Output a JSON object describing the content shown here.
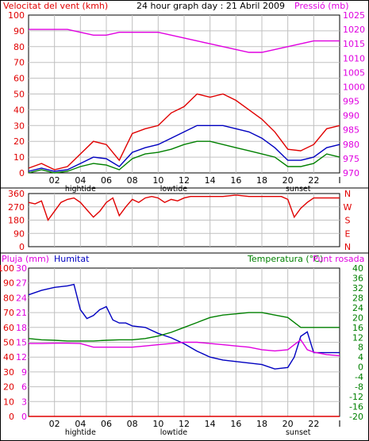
{
  "chart_data": [
    {
      "type": "line",
      "title": "24 hour graph day : 21 Abril 2009",
      "left_label": "Velocitat del vent (kmh)",
      "right_label": "Pressió (mb)",
      "y_left": {
        "min": 0,
        "max": 100,
        "ticks": [
          "0",
          "10",
          "20",
          "30",
          "40",
          "50",
          "60",
          "70",
          "80",
          "90",
          "100"
        ]
      },
      "y_right": {
        "min": 970,
        "max": 1025,
        "ticks": [
          "970",
          "975",
          "980",
          "985",
          "990",
          "995",
          "1000",
          "1005",
          "1010",
          "1015",
          "1020",
          "1025"
        ]
      },
      "x": {
        "min": 0,
        "max": 24,
        "ticks": [
          "02",
          "04",
          "06",
          "08",
          "10",
          "12",
          "14",
          "16",
          "18",
          "20",
          "22"
        ],
        "end_tick": "I"
      },
      "annotations": {
        "hightide": "hightide",
        "lowtide": "lowtide",
        "sunset": "sunset"
      },
      "series": [
        {
          "axis": "right",
          "color": "#e000e0",
          "x": [
            0,
            1,
            2,
            3,
            4,
            5,
            6,
            7,
            8,
            9,
            10,
            11,
            12,
            13,
            14,
            15,
            16,
            17,
            18,
            19,
            20,
            21,
            22,
            23,
            24
          ],
          "values": [
            1020,
            1020,
            1020,
            1020,
            1019,
            1018,
            1018,
            1019,
            1019,
            1019,
            1019,
            1018,
            1017,
            1016,
            1015,
            1014,
            1013,
            1012,
            1012,
            1013,
            1014,
            1015,
            1016,
            1016,
            1016
          ]
        },
        {
          "axis": "left",
          "color": "#e00000",
          "x": [
            0,
            1,
            2,
            3,
            4,
            5,
            6,
            7,
            8,
            9,
            10,
            11,
            12,
            13,
            14,
            15,
            16,
            17,
            18,
            19,
            20,
            21,
            22,
            23,
            24
          ],
          "values": [
            3,
            6,
            2,
            4,
            12,
            20,
            18,
            8,
            25,
            28,
            30,
            38,
            42,
            50,
            48,
            50,
            46,
            40,
            34,
            26,
            15,
            14,
            18,
            28,
            30
          ]
        },
        {
          "axis": "left",
          "color": "#0000c0",
          "x": [
            0,
            1,
            2,
            3,
            4,
            5,
            6,
            7,
            8,
            9,
            10,
            11,
            12,
            13,
            14,
            15,
            16,
            17,
            18,
            19,
            20,
            21,
            22,
            23,
            24
          ],
          "values": [
            1,
            3,
            1,
            2,
            6,
            10,
            9,
            4,
            13,
            16,
            18,
            22,
            26,
            30,
            30,
            30,
            28,
            26,
            22,
            16,
            8,
            8,
            10,
            16,
            18
          ]
        },
        {
          "axis": "left",
          "color": "#008000",
          "x": [
            0,
            1,
            2,
            3,
            4,
            5,
            6,
            7,
            8,
            9,
            10,
            11,
            12,
            13,
            14,
            15,
            16,
            17,
            18,
            19,
            20,
            21,
            22,
            23,
            24
          ],
          "values": [
            0,
            2,
            0,
            1,
            4,
            6,
            5,
            2,
            9,
            12,
            13,
            15,
            18,
            20,
            20,
            18,
            16,
            14,
            12,
            10,
            4,
            4,
            6,
            12,
            10
          ]
        }
      ]
    },
    {
      "type": "line",
      "y_left": {
        "min": 0,
        "max": 360,
        "ticks": [
          "0",
          "90",
          "180",
          "270",
          "360"
        ]
      },
      "right_letters": [
        "N",
        "W",
        "S",
        "E",
        "N"
      ],
      "series": [
        {
          "color": "#e00000",
          "x": [
            0,
            0.5,
            1,
            1.5,
            2,
            2.5,
            3,
            3.5,
            4,
            4.5,
            5,
            5.5,
            6,
            6.5,
            7,
            7.5,
            8,
            8.5,
            9,
            9.5,
            10,
            10.5,
            11,
            11.5,
            12,
            12.5,
            13,
            14,
            15,
            16,
            17,
            18,
            19,
            19.5,
            20,
            20.5,
            21,
            21.5,
            22,
            23,
            24
          ],
          "values": [
            300,
            290,
            310,
            180,
            240,
            300,
            320,
            330,
            300,
            250,
            200,
            240,
            300,
            330,
            210,
            270,
            320,
            300,
            330,
            340,
            330,
            300,
            320,
            310,
            330,
            340,
            340,
            340,
            340,
            350,
            340,
            340,
            340,
            340,
            320,
            200,
            260,
            300,
            330,
            330,
            330
          ]
        }
      ]
    },
    {
      "type": "line",
      "labels": {
        "pluja": "Pluja (mm)",
        "humitat": "Humitat",
        "temperatura": "Temperatura (°C)",
        "punt_rosada": "Punt rosada"
      },
      "y_pluja": {
        "min": 0,
        "max": 30,
        "ticks": [
          "0",
          "3",
          "6",
          "9",
          "12",
          "15",
          "18",
          "21",
          "24",
          "27",
          "30"
        ]
      },
      "y_humitat": {
        "min": 0,
        "max": 100,
        "ticks": [
          "0",
          "10",
          "20",
          "30",
          "40",
          "50",
          "60",
          "70",
          "80",
          "90",
          "100"
        ]
      },
      "y_temp": {
        "min": -20,
        "max": 40,
        "ticks": [
          "-20",
          "-16",
          "-12",
          "-8",
          "-4",
          "0",
          "4",
          "8",
          "12",
          "16",
          "20",
          "24",
          "28",
          "32",
          "36",
          "40"
        ]
      },
      "series": [
        {
          "name": "Humitat",
          "axis": "humitat",
          "color": "#0000c0",
          "x": [
            0,
            1,
            2,
            3,
            3.5,
            4,
            4.5,
            5,
            5.5,
            6,
            6.5,
            7,
            7.5,
            8,
            9,
            10,
            11,
            12,
            13,
            14,
            15,
            16,
            17,
            18,
            19,
            20,
            20.5,
            21,
            21.5,
            22,
            23,
            24
          ],
          "values": [
            82,
            85,
            87,
            88,
            89,
            72,
            66,
            68,
            72,
            74,
            65,
            63,
            63,
            61,
            60,
            56,
            53,
            49,
            44,
            40,
            38,
            37,
            36,
            35,
            32,
            33,
            40,
            54,
            57,
            43,
            43,
            43
          ]
        },
        {
          "name": "Temperatura (°C)",
          "axis": "temp",
          "color": "#008000",
          "x": [
            0,
            1,
            2,
            3,
            4,
            5,
            6,
            7,
            8,
            9,
            10,
            11,
            12,
            13,
            14,
            15,
            16,
            17,
            18,
            19,
            20,
            21,
            22,
            23,
            24
          ],
          "values": [
            11.5,
            11,
            10.8,
            10.5,
            10.5,
            10.5,
            10.8,
            11,
            11,
            11.5,
            12.5,
            14,
            16,
            18,
            20,
            21,
            21.5,
            22,
            22,
            21,
            20,
            16,
            16,
            16,
            16
          ]
        },
        {
          "name": "Punt rosada",
          "axis": "temp",
          "color": "#e000e0",
          "x": [
            0,
            1,
            2,
            3,
            4,
            5,
            6,
            7,
            8,
            9,
            10,
            11,
            12,
            13,
            14,
            15,
            16,
            17,
            18,
            19,
            20,
            20.5,
            21,
            21.5,
            22,
            23,
            24
          ],
          "values": [
            9.5,
            9.5,
            9.6,
            9.6,
            9.5,
            8,
            8,
            8,
            8,
            8.5,
            9,
            9.5,
            10,
            10,
            9.5,
            9,
            8.5,
            8,
            7,
            6.5,
            7,
            9,
            11,
            7,
            6,
            5,
            4.5
          ]
        },
        {
          "name": "Pluja (mm)",
          "axis": "pluja",
          "color": "#e00000",
          "x": [
            0,
            24
          ],
          "values": [
            0,
            0
          ]
        }
      ]
    }
  ],
  "colors": {
    "wind_label": "#e00000",
    "pressure_label": "#e000e0",
    "humitat_label": "#0000c0",
    "temp_label": "#008000",
    "grid": "#c0c0c0",
    "frame": "#000000"
  }
}
